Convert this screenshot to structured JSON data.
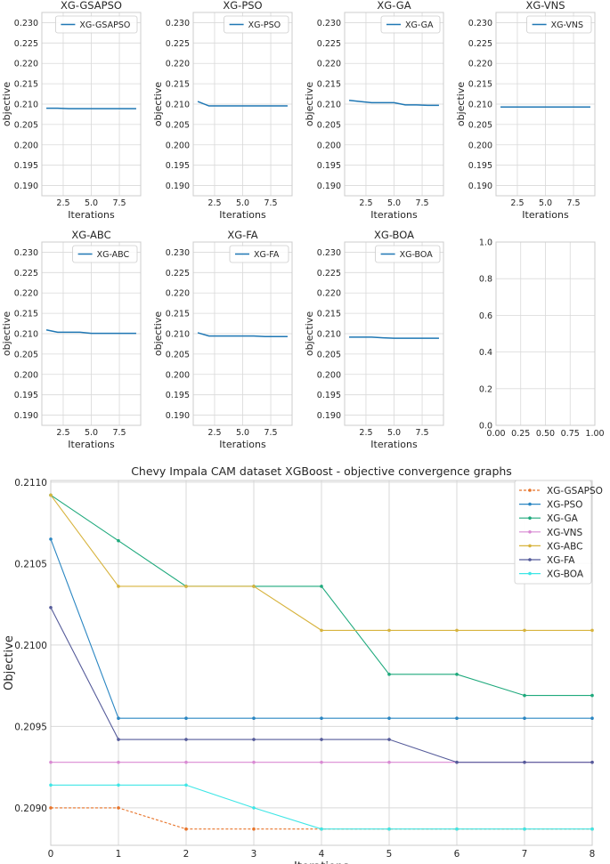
{
  "colors": {
    "small_line": "#1f77b4",
    "grid": "#d9d9d9",
    "spine": "#cccccc",
    "series": {
      "XG-GSAPSO": "#e8742a",
      "XG-PSO": "#2a86c2",
      "XG-GA": "#1ea97c",
      "XG-VNS": "#d98ad3",
      "XG-ABC": "#d7b33d",
      "XG-FA": "#555b9a",
      "XG-BOA": "#3ee6e6"
    }
  },
  "small_common": {
    "xlabel": "Iterations",
    "ylabel": "objective",
    "xticks": [
      "2.5",
      "5.0",
      "7.5"
    ],
    "xtick_values": [
      2.5,
      5.0,
      7.5
    ],
    "xlim": [
      0.6,
      9.4
    ],
    "ylim": [
      0.1875,
      0.2325
    ],
    "yticks": [
      "0.190",
      "0.195",
      "0.200",
      "0.205",
      "0.210",
      "0.215",
      "0.220",
      "0.225",
      "0.230"
    ],
    "ytick_values": [
      0.19,
      0.195,
      0.2,
      0.205,
      0.21,
      0.215,
      0.22,
      0.225,
      0.23
    ]
  },
  "small_charts": [
    {
      "title": "XG-GSAPSO",
      "legend": "XG-GSAPSO",
      "x": [
        1,
        2,
        3,
        4,
        5,
        6,
        7,
        8,
        9
      ],
      "y": [
        0.209,
        0.209,
        0.20887,
        0.20887,
        0.20887,
        0.20887,
        0.20887,
        0.20887,
        0.20887
      ]
    },
    {
      "title": "XG-PSO",
      "legend": "XG-PSO",
      "x": [
        1,
        2,
        3,
        4,
        5,
        6,
        7,
        8,
        9
      ],
      "y": [
        0.21065,
        0.20955,
        0.20955,
        0.20955,
        0.20955,
        0.20955,
        0.20955,
        0.20955,
        0.20955
      ]
    },
    {
      "title": "XG-GA",
      "legend": "XG-GA",
      "x": [
        1,
        2,
        3,
        4,
        5,
        6,
        7,
        8,
        9
      ],
      "y": [
        0.21092,
        0.21064,
        0.21036,
        0.21036,
        0.21036,
        0.20982,
        0.20982,
        0.20969,
        0.20969
      ]
    },
    {
      "title": "XG-VNS",
      "legend": "XG-VNS",
      "x": [
        1,
        2,
        3,
        4,
        5,
        6,
        7,
        8,
        9
      ],
      "y": [
        0.20928,
        0.20928,
        0.20928,
        0.20928,
        0.20928,
        0.20928,
        0.20928,
        0.20928,
        0.20928
      ]
    },
    {
      "title": "XG-ABC",
      "legend": "XG-ABC",
      "x": [
        1,
        2,
        3,
        4,
        5,
        6,
        7,
        8,
        9
      ],
      "y": [
        0.21092,
        0.21036,
        0.21036,
        0.21036,
        0.21009,
        0.21009,
        0.21009,
        0.21009,
        0.21009
      ]
    },
    {
      "title": "XG-FA",
      "legend": "XG-FA",
      "x": [
        1,
        2,
        3,
        4,
        5,
        6,
        7,
        8,
        9
      ],
      "y": [
        0.21023,
        0.20942,
        0.20942,
        0.20942,
        0.20942,
        0.20942,
        0.20928,
        0.20928,
        0.20928
      ]
    },
    {
      "title": "XG-BOA",
      "legend": "XG-BOA",
      "x": [
        1,
        2,
        3,
        4,
        5,
        6,
        7,
        8,
        9
      ],
      "y": [
        0.20914,
        0.20914,
        0.20914,
        0.209,
        0.20887,
        0.20887,
        0.20887,
        0.20887,
        0.20887
      ]
    }
  ],
  "empty_chart": {
    "xticks": [
      "0.00",
      "0.25",
      "0.50",
      "0.75",
      "1.00"
    ],
    "yticks": [
      "0.0",
      "0.2",
      "0.4",
      "0.6",
      "0.8",
      "1.0"
    ],
    "tick_values": [
      0,
      0.25,
      0.5,
      0.75,
      1.0
    ],
    "ytick_values": [
      0,
      0.2,
      0.4,
      0.6,
      0.8,
      1.0
    ]
  },
  "chart_data": {
    "type": "line",
    "title": "Chevy Impala CAM dataset XGBoost -  objective convergence graphs",
    "xlabel": "Iterations",
    "ylabel": "Objective",
    "x": [
      0,
      1,
      2,
      3,
      4,
      5,
      6,
      7,
      8
    ],
    "xticks": [
      "0",
      "1",
      "2",
      "3",
      "4",
      "5",
      "6",
      "7",
      "8"
    ],
    "xlim": [
      0,
      8
    ],
    "ylim": [
      0.20877,
      0.21101
    ],
    "yticks": [
      "0.2090",
      "0.2095",
      "0.2100",
      "0.2105",
      "0.2110"
    ],
    "ytick_values": [
      0.209,
      0.2095,
      0.21,
      0.2105,
      0.211
    ],
    "legend_position": "top-right",
    "grid": true,
    "series": [
      {
        "name": "XG-GSAPSO",
        "style": "dashed",
        "values": [
          0.209,
          0.209,
          0.20887,
          0.20887,
          0.20887,
          0.20887,
          0.20887,
          0.20887,
          0.20887
        ]
      },
      {
        "name": "XG-PSO",
        "style": "solid",
        "values": [
          0.21065,
          0.20955,
          0.20955,
          0.20955,
          0.20955,
          0.20955,
          0.20955,
          0.20955,
          0.20955
        ]
      },
      {
        "name": "XG-GA",
        "style": "solid",
        "values": [
          0.21092,
          0.21064,
          0.21036,
          0.21036,
          0.21036,
          0.20982,
          0.20982,
          0.20969,
          0.20969
        ]
      },
      {
        "name": "XG-VNS",
        "style": "solid",
        "values": [
          0.20928,
          0.20928,
          0.20928,
          0.20928,
          0.20928,
          0.20928,
          0.20928,
          0.20928,
          0.20928
        ]
      },
      {
        "name": "XG-ABC",
        "style": "solid",
        "values": [
          0.21092,
          0.21036,
          0.21036,
          0.21036,
          0.21009,
          0.21009,
          0.21009,
          0.21009,
          0.21009
        ]
      },
      {
        "name": "XG-FA",
        "style": "solid",
        "values": [
          0.21023,
          0.20942,
          0.20942,
          0.20942,
          0.20942,
          0.20942,
          0.20928,
          0.20928,
          0.20928
        ]
      },
      {
        "name": "XG-BOA",
        "style": "solid",
        "values": [
          0.20914,
          0.20914,
          0.20914,
          0.209,
          0.20887,
          0.20887,
          0.20887,
          0.20887,
          0.20887
        ]
      }
    ]
  }
}
